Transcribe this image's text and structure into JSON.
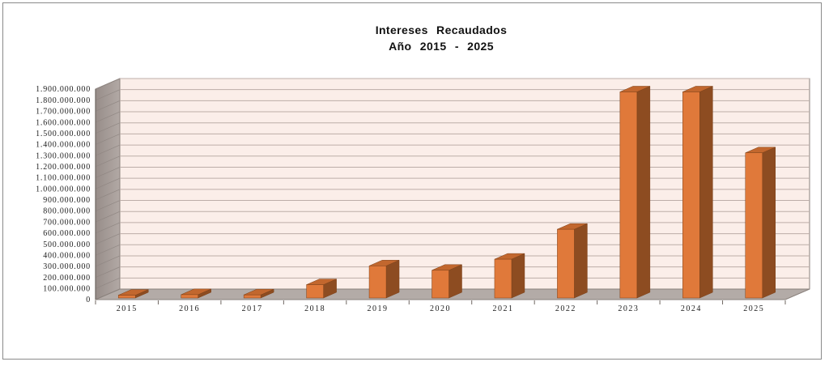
{
  "title": {
    "line1": "Intereses Recaudados",
    "line2": "Año 2015 - 2025"
  },
  "chart_data": {
    "type": "bar",
    "style": "3d-column",
    "title": "Intereses Recaudados",
    "subtitle": "Año 2015 - 2025",
    "categories": [
      "2015",
      "2016",
      "2017",
      "2018",
      "2019",
      "2020",
      "2021",
      "2022",
      "2023",
      "2024",
      "2025"
    ],
    "series": [
      {
        "name": "Intereses Recaudados",
        "values": [
          25000000,
          30000000,
          28000000,
          120000000,
          290000000,
          250000000,
          350000000,
          620000000,
          1860000000,
          1860000000,
          1310000000
        ]
      }
    ],
    "xlabel": "",
    "ylabel": "",
    "ylim": [
      0,
      1900000000
    ],
    "ytick_step": 100000000,
    "ytick_labels": [
      "0",
      "100.000.000",
      "200.000.000",
      "300.000.000",
      "400.000.000",
      "500.000.000",
      "600.000.000",
      "700.000.000",
      "800.000.000",
      "900.000.000",
      "1.000.000.000",
      "1.100.000.000",
      "1.200.000.000",
      "1.300.000.000",
      "1.400.000.000",
      "1.500.000.000",
      "1.600.000.000",
      "1.700.000.000",
      "1.800.000.000",
      "1.900.000.000"
    ],
    "grid": true,
    "legend": "none",
    "colors": {
      "bar_front": "#e0793a",
      "bar_top": "#c2672e",
      "bar_side": "#8d4c21",
      "bar_edge": "#7c4119",
      "back_wall": "#fbeee9",
      "gridline": "#bcada8",
      "left_wall_dark": "#978d89",
      "left_wall_light": "#b2a9a5",
      "wall_tick": "#908783",
      "floor": "#b3aba7",
      "edge": "#8a817c",
      "axis": "#6f6762",
      "text": "#1b1b1b"
    }
  }
}
